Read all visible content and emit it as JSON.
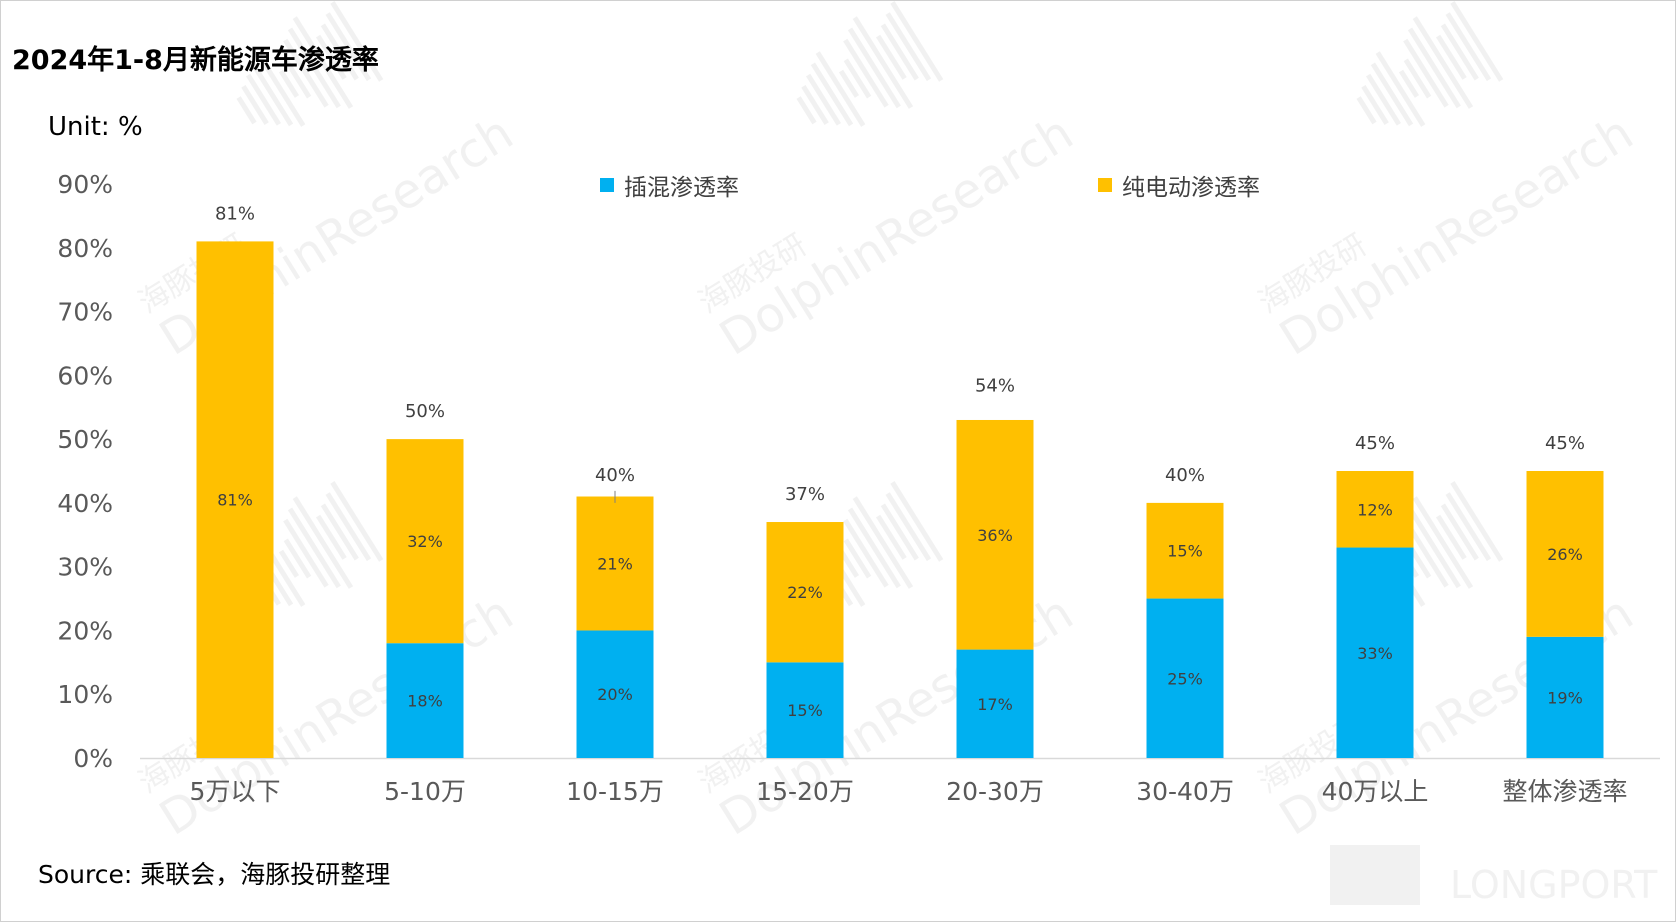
{
  "title": "2024年1-8月新能源车渗透率",
  "unit_label": "Unit: %",
  "source": "Source: 乘联会，海豚投研整理",
  "watermark": {
    "text_cn": "海豚投研",
    "text_en": "DolphinResearch",
    "logo_text": "LONGPORT"
  },
  "colors": {
    "phev": "#00b0f0",
    "bev": "#ffc000",
    "axis": "#d9d9d9",
    "tick_text": "#595959",
    "label_text": "#404040"
  },
  "chart_data": {
    "type": "bar",
    "stacked": true,
    "title": "2024年1-8月新能源车渗透率",
    "ylabel": "Unit: %",
    "ylim": [
      0,
      90
    ],
    "yticks": [
      "0%",
      "10%",
      "20%",
      "30%",
      "40%",
      "50%",
      "60%",
      "70%",
      "80%",
      "90%"
    ],
    "grid": false,
    "legend_position": "top",
    "categories": [
      "5万以下",
      "5-10万",
      "10-15万",
      "15-20万",
      "20-30万",
      "30-40万",
      "40万以上",
      "整体渗透率"
    ],
    "series": [
      {
        "name": "插混渗透率",
        "color": "#00b0f0",
        "values": [
          0,
          18,
          20,
          15,
          17,
          25,
          33,
          19
        ],
        "labels": [
          "",
          "18%",
          "20%",
          "15%",
          "17%",
          "25%",
          "33%",
          "19%"
        ]
      },
      {
        "name": "纯电动渗透率",
        "color": "#ffc000",
        "values": [
          81,
          32,
          21,
          22,
          36,
          15,
          12,
          26
        ],
        "labels": [
          "81%",
          "32%",
          "21%",
          "22%",
          "36%",
          "15%",
          "12%",
          "26%"
        ]
      }
    ],
    "totals": [
      81,
      50,
      40,
      37,
      54,
      40,
      45,
      45
    ],
    "total_labels": [
      "81%",
      "50%",
      "40%",
      "37%",
      "54%",
      "40%",
      "45%",
      "45%"
    ]
  }
}
